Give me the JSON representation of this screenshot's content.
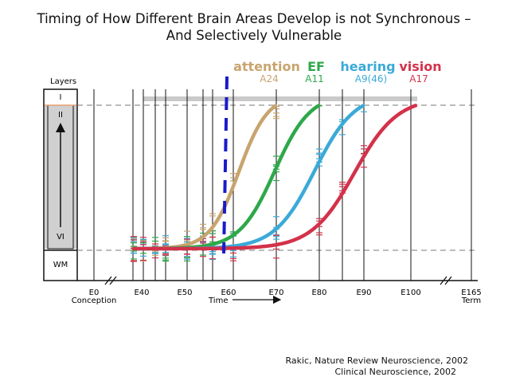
{
  "title": {
    "line1": "Timing of How Different Brain Areas Develop is not Synchronous –",
    "line2": "And Selectively Vulnerable"
  },
  "citation": {
    "line1": "Rakic, Nature Review Neuroscience, 2002",
    "line2": "Clinical Neuroscience, 2002"
  },
  "layers": {
    "heading": "Layers",
    "labels": [
      "I",
      "II",
      "VI",
      "WM"
    ]
  },
  "areas": [
    {
      "name": "attention",
      "code": "A24",
      "color": "#C8A46E"
    },
    {
      "name": "EF",
      "code": "A11",
      "color": "#2EA84A"
    },
    {
      "name": "hearing",
      "code": "A9(46)",
      "color": "#3BAAD8"
    },
    {
      "name": "vision",
      "code": "A17",
      "color": "#D4314A"
    }
  ],
  "axis": {
    "tick_labels": [
      {
        "label": "E0",
        "sub": "Conception"
      },
      {
        "label": "E40"
      },
      {
        "label": "E50"
      },
      {
        "label": "E60"
      },
      {
        "label": "E70"
      },
      {
        "label": "E80"
      },
      {
        "label": "E90"
      },
      {
        "label": "E100"
      },
      {
        "label": "E165",
        "sub": "Term"
      }
    ],
    "time_label": "Time"
  },
  "colors": {
    "marker": "#1A1ACC",
    "plateau": "#C9C9C9",
    "gridline": "#666666"
  }
}
